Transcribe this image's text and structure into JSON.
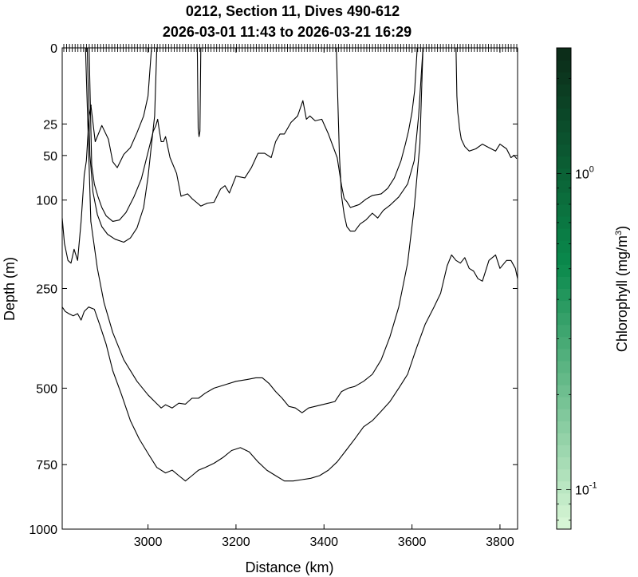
{
  "chart_data": {
    "type": "contour",
    "title": [
      "0212, Section 11, Dives 490-612",
      "2026-03-01 11:43 to 2026-03-21 16:29"
    ],
    "xlabel": "Distance (km)",
    "ylabel": "Depth (m)",
    "xlim": [
      2805,
      3840
    ],
    "x_ticks": [
      3000,
      3200,
      3400,
      3600,
      3800
    ],
    "y_scale": "sqrt",
    "ylim": [
      0,
      1000
    ],
    "y_ticks": [
      0,
      25,
      50,
      100,
      250,
      500,
      750,
      1000
    ],
    "y_reversed": true,
    "dive_ticks_at_surface": true,
    "colorbar": {
      "label_main": "Chlorophyll (mg/m",
      "label_sup": "3",
      "label_close": ")",
      "scale": "log",
      "range": [
        0.075,
        2.5
      ],
      "ticks": [
        {
          "value": 1,
          "base": "10",
          "exp": "0"
        },
        {
          "value": 0.1,
          "base": "10",
          "exp": "-1"
        }
      ],
      "levels": 40,
      "color_low": "#dbf7d8",
      "color_mid": "#0a8a4c",
      "color_high": "#0c2a18"
    },
    "contour_line_color": "#000000",
    "contours": [
      {
        "x": [
          2805,
          2810,
          2818,
          2825,
          2832,
          2840,
          2848,
          2855,
          2860,
          2866,
          2871
        ],
        "y": [
          125,
          165,
          195,
          200,
          175,
          195,
          130,
          70,
          55,
          20,
          14
        ]
      },
      {
        "x": [
          2870,
          2880,
          2895,
          2910,
          2920,
          2930,
          2945,
          2960,
          2975,
          2990,
          3000,
          3008
        ],
        "y": [
          14,
          38,
          26,
          36,
          56,
          62,
          49,
          43,
          31,
          20,
          10,
          0
        ]
      },
      {
        "x": [
          2866,
          2872,
          2878,
          2886,
          2895,
          2905,
          2920,
          2935,
          2950,
          2968,
          2985,
          3000,
          3012,
          3018,
          3022,
          3026,
          3030,
          3035,
          3040,
          3050,
          3065,
          3075,
          3090,
          3100,
          3110,
          3120,
          3135,
          3150,
          3165,
          3175,
          3185,
          3200,
          3220,
          3235,
          3250,
          3265,
          3280,
          3290,
          3300,
          3310,
          3325,
          3340,
          3352,
          3360,
          3368,
          3380,
          3395,
          3410,
          3430,
          3440,
          3446,
          3452,
          3460,
          3470,
          3480,
          3495,
          3510,
          3530,
          3545,
          3560,
          3575,
          3585,
          3592,
          3600,
          3606,
          3612,
          3616,
          3618,
          3620
        ],
        "y": [
          0,
          60,
          80,
          95,
          110,
          122,
          130,
          128,
          117,
          96,
          74,
          47,
          30,
          26,
          22,
          30,
          38,
          38,
          34,
          52,
          68,
          95,
          92,
          98,
          103,
          108,
          104,
          103,
          86,
          82,
          91,
          71,
          73,
          62,
          48,
          48,
          52,
          38,
          32,
          32,
          24,
          20,
          12,
          22,
          20,
          23,
          22,
          32,
          52,
          82,
          98,
          102,
          110,
          108,
          106,
          99,
          94,
          92,
          85,
          73,
          55,
          40,
          30,
          18,
          8,
          0,
          0,
          0,
          0
        ]
      },
      {
        "x": [
          2862,
          2868,
          2875,
          2885,
          2895,
          2908,
          2925,
          2945,
          2960,
          2975,
          2990,
          3000,
          3008,
          3015,
          3020
        ],
        "y": [
          0,
          50,
          90,
          120,
          138,
          150,
          158,
          163,
          156,
          140,
          110,
          72,
          40,
          20,
          0
        ]
      },
      {
        "x": [
          3428,
          3435,
          3440,
          3446,
          3452,
          3460,
          3470,
          3482,
          3495,
          3510,
          3522,
          3535,
          3550,
          3570,
          3590,
          3605,
          3615,
          3625
        ],
        "y": [
          0,
          50,
          95,
          120,
          138,
          145,
          145,
          134,
          128,
          118,
          125,
          114,
          107,
          96,
          80,
          55,
          20,
          0
        ]
      },
      {
        "x": [
          3112,
          3114,
          3116,
          3118,
          3120
        ],
        "y": [
          0,
          28,
          34,
          30,
          0
        ]
      },
      {
        "x": [
          3680,
          3690,
          3700,
          3710,
          3715,
          3720,
          3725,
          3728
        ],
        "y": [
          0,
          0,
          0,
          0,
          0,
          0,
          0,
          0
        ]
      },
      {
        "x": [
          3700,
          3702,
          3704,
          3706,
          3708,
          3712,
          3720,
          3730,
          3745,
          3760,
          3775,
          3790,
          3800,
          3815,
          3825,
          3832,
          3838
        ],
        "y": [
          0,
          10,
          18,
          22,
          28,
          36,
          42,
          46,
          44,
          40,
          43,
          46,
          40,
          44,
          52,
          50,
          53
        ]
      },
      {
        "x": [
          2858,
          2870,
          2885,
          2900,
          2920,
          2945,
          2975,
          3000,
          3015,
          3030,
          3040,
          3055,
          3070,
          3085,
          3100,
          3115,
          3130,
          3150,
          3175,
          3200,
          3225,
          3245,
          3260,
          3275,
          3290,
          3305,
          3320,
          3335,
          3350,
          3365,
          3380,
          3395,
          3410,
          3425,
          3440,
          3455,
          3470,
          3490,
          3510,
          3530,
          3550,
          3570,
          3590,
          3605,
          3618,
          3625
        ],
        "y": [
          0,
          130,
          210,
          280,
          350,
          420,
          480,
          520,
          540,
          560,
          550,
          560,
          545,
          548,
          530,
          530,
          515,
          500,
          490,
          480,
          475,
          470,
          470,
          486,
          510,
          530,
          555,
          560,
          575,
          560,
          555,
          550,
          545,
          540,
          510,
          500,
          495,
          480,
          460,
          420,
          360,
          290,
          200,
          110,
          40,
          0
        ]
      },
      {
        "x": [
          2805,
          2812,
          2820,
          2830,
          2840,
          2848,
          2855,
          2865,
          2878,
          2890,
          2905,
          2920,
          2940,
          2960,
          2980,
          3000,
          3020,
          3040,
          3055,
          3070,
          3085,
          3100,
          3115,
          3130,
          3150,
          3170,
          3190,
          3210,
          3230,
          3250,
          3270,
          3290,
          3310,
          3330,
          3350,
          3370,
          3390,
          3410,
          3430,
          3450,
          3470,
          3490,
          3510,
          3530,
          3550,
          3570,
          3590,
          3610,
          3630,
          3650,
          3665,
          3680,
          3690,
          3700,
          3710,
          3720,
          3730,
          3740,
          3750,
          3760,
          3775,
          3790,
          3800,
          3815,
          3825,
          3835,
          3840
        ],
        "y": [
          290,
          300,
          305,
          310,
          305,
          320,
          300,
          290,
          295,
          330,
          380,
          450,
          520,
          600,
          660,
          710,
          760,
          780,
          770,
          790,
          810,
          790,
          770,
          760,
          745,
          725,
          700,
          690,
          705,
          740,
          770,
          790,
          810,
          810,
          805,
          800,
          790,
          770,
          740,
          700,
          660,
          620,
          600,
          570,
          540,
          500,
          460,
          390,
          330,
          290,
          260,
          205,
          185,
          195,
          200,
          190,
          210,
          215,
          230,
          235,
          195,
          185,
          210,
          195,
          195,
          210,
          230
        ]
      }
    ]
  }
}
